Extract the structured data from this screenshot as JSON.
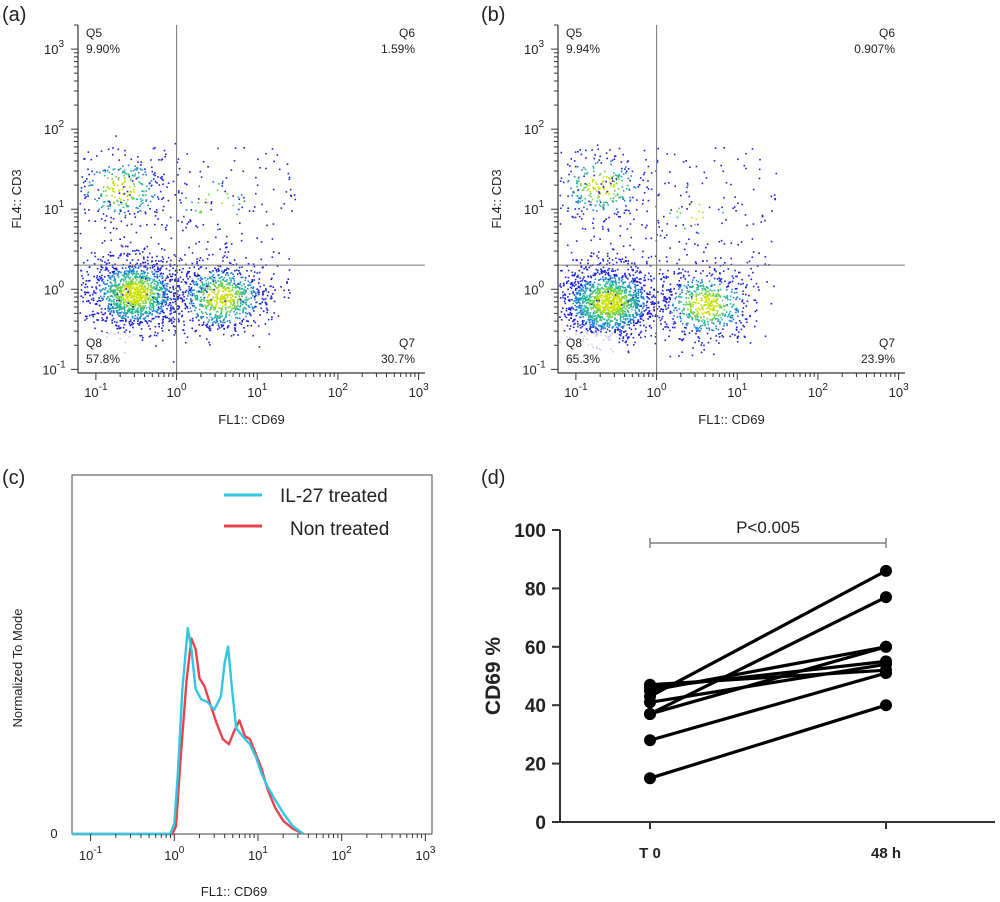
{
  "colors": {
    "il27": "#33c6e0",
    "nontreated": "#e6434f",
    "dots": "#1a1fd8",
    "axis": "#333333",
    "gate": "#777777"
  },
  "chart_data": [
    {
      "panel": "(a)",
      "type": "scatter",
      "xlabel": "FL1:: CD69",
      "ylabel": "FL4:: CD3",
      "scale": "log",
      "xlim": [
        0.06,
        1200
      ],
      "ylim": [
        0.09,
        2000
      ],
      "x_ticks": [
        "10",
        "10",
        "10",
        "10",
        "10"
      ],
      "x_tick_exp": [
        "-1",
        "0",
        "1",
        "2",
        "3"
      ],
      "y_ticks": [
        "10",
        "10",
        "10",
        "10",
        "10"
      ],
      "y_tick_exp": [
        "-1",
        "0",
        "1",
        "2",
        "3"
      ],
      "gate": {
        "x": 1.0,
        "y": 2.0
      },
      "quadrants": [
        {
          "name": "Q5",
          "percent": "9.90%"
        },
        {
          "name": "Q6",
          "percent": "1.59%"
        },
        {
          "name": "Q7",
          "percent": "30.7%"
        },
        {
          "name": "Q8",
          "percent": "57.8%"
        }
      ],
      "populations": [
        {
          "x": 0.3,
          "y": 0.9,
          "share": 0.52
        },
        {
          "x": 3.5,
          "y": 0.8,
          "share": 0.31
        },
        {
          "x": 0.2,
          "y": 18,
          "share": 0.1
        },
        {
          "x": 3.0,
          "y": 12,
          "share": 0.015
        }
      ]
    },
    {
      "panel": "(b)",
      "type": "scatter",
      "xlabel": "FL1:: CD69",
      "ylabel": "FL4:: CD3",
      "scale": "log",
      "xlim": [
        0.06,
        1200
      ],
      "ylim": [
        0.09,
        2000
      ],
      "x_ticks": [
        "10",
        "10",
        "10",
        "10",
        "10"
      ],
      "x_tick_exp": [
        "-1",
        "0",
        "1",
        "2",
        "3"
      ],
      "y_ticks": [
        "10",
        "10",
        "10",
        "10",
        "10"
      ],
      "y_tick_exp": [
        "-1",
        "0",
        "1",
        "2",
        "3"
      ],
      "gate": {
        "x": 1.0,
        "y": 2.0
      },
      "quadrants": [
        {
          "name": "Q5",
          "percent": "9.94%"
        },
        {
          "name": "Q6",
          "percent": "0.907%"
        },
        {
          "name": "Q7",
          "percent": "23.9%"
        },
        {
          "name": "Q8",
          "percent": "65.3%"
        }
      ],
      "populations": [
        {
          "x": 0.25,
          "y": 0.7,
          "share": 0.58
        },
        {
          "x": 4.0,
          "y": 0.65,
          "share": 0.24
        },
        {
          "x": 0.2,
          "y": 20,
          "share": 0.1
        },
        {
          "x": 3.0,
          "y": 10,
          "share": 0.01
        }
      ]
    },
    {
      "panel": "(c)",
      "type": "line",
      "xlabel": "FL1:: CD69",
      "ylabel": "Normalized To Mode",
      "scale": "log-x",
      "xlim": [
        0.06,
        1200
      ],
      "ylim": [
        0,
        100
      ],
      "x_ticks": [
        "10",
        "10",
        "10",
        "10",
        "10"
      ],
      "x_tick_exp": [
        "-1",
        "0",
        "1",
        "2",
        "3"
      ],
      "y_ticks": [
        "0"
      ],
      "series": [
        {
          "name": "IL-27 treated",
          "x": [
            0.06,
            0.9,
            1.0,
            1.1,
            1.25,
            1.45,
            1.6,
            1.8,
            2.1,
            2.5,
            3.0,
            3.6,
            4.0,
            4.4,
            4.9,
            5.5,
            6.2,
            7.0,
            8.0,
            9.5,
            11,
            13,
            16,
            20,
            26,
            35
          ],
          "y": [
            0,
            0,
            4,
            22,
            55,
            78,
            70,
            55,
            51,
            50,
            47,
            52,
            65,
            71,
            55,
            40,
            38,
            36,
            34,
            29,
            23,
            18,
            13,
            8,
            3,
            0
          ]
        },
        {
          "name": "Non treated",
          "x": [
            0.06,
            0.95,
            1.05,
            1.2,
            1.4,
            1.6,
            1.8,
            2.0,
            2.3,
            2.7,
            3.2,
            3.8,
            4.5,
            5.2,
            6.0,
            7.0,
            8.0,
            9.5,
            11,
            13,
            16,
            20,
            26,
            35
          ],
          "y": [
            0,
            0,
            3,
            30,
            58,
            74,
            70,
            59,
            56,
            49,
            42,
            36,
            34,
            39,
            43,
            37,
            36,
            30,
            25,
            17,
            10,
            5,
            2,
            0
          ]
        }
      ]
    },
    {
      "panel": "(d)",
      "type": "scatter",
      "paired": true,
      "ylabel": "CD69 %",
      "ylim": [
        0,
        100
      ],
      "y_ticks": [
        "0",
        "20",
        "40",
        "60",
        "80",
        "100"
      ],
      "categories": [
        "T 0",
        "48 h"
      ],
      "annotation": "P<0.005",
      "pairs": [
        [
          47,
          52
        ],
        [
          46,
          55
        ],
        [
          45,
          60
        ],
        [
          43,
          86
        ],
        [
          41,
          54
        ],
        [
          37,
          60
        ],
        [
          37,
          77
        ],
        [
          28,
          51
        ],
        [
          15,
          40
        ]
      ]
    }
  ]
}
